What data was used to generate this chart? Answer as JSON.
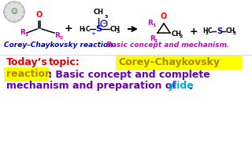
{
  "bg_color": "#f2f2f2",
  "white": "#ffffff",
  "magenta": "#cc00cc",
  "blue": "#0000cc",
  "red": "#dd0000",
  "purple": "#6600aa",
  "dark_yellow": "#aa8800",
  "cyan": "#00aadd",
  "black": "#000000",
  "yellow": "#ffff00",
  "title_blue": "Corey–Chaykovsky reaction: ",
  "title_magenta": "Basic concept and mechanism.",
  "b1_red": "Today’s",
  "b1_red2": "topic:",
  "b1_highlight": "Corey–Chaykovsky",
  "b2_highlight": "reaction",
  "b2_rest": ": Basic concept and complete",
  "b3_rest": "mechanism and preparation of ",
  "b3_cyan": "ylide",
  "b3_end": "."
}
